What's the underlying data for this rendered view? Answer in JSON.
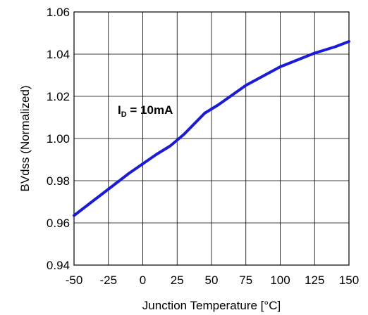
{
  "chart_data": {
    "type": "line",
    "title": "",
    "xlabel": "Junction Temperature [°C]",
    "ylabel": "BVdss  (Normalized)",
    "xlim": [
      -50,
      150
    ],
    "ylim": [
      0.94,
      1.06
    ],
    "x_ticks": [
      "-50",
      "-25",
      "0",
      "25",
      "50",
      "75",
      "100",
      "125",
      "150"
    ],
    "y_ticks": [
      "0.94",
      "0.96",
      "0.98",
      "1.00",
      "1.02",
      "1.04",
      "1.06"
    ],
    "grid": true,
    "annotation": {
      "main": "I",
      "sub": "D",
      "rest": " = 10mA"
    },
    "series": [
      {
        "color": "#1a1adc",
        "x": [
          -50,
          -40,
          -25,
          -10,
          0,
          10,
          20,
          30,
          45,
          55,
          75,
          100,
          125,
          140,
          150
        ],
        "y": [
          0.9635,
          0.9685,
          0.976,
          0.9835,
          0.988,
          0.9925,
          0.9965,
          1.002,
          1.012,
          1.016,
          1.0252,
          1.034,
          1.0405,
          1.0435,
          1.046
        ]
      }
    ]
  }
}
